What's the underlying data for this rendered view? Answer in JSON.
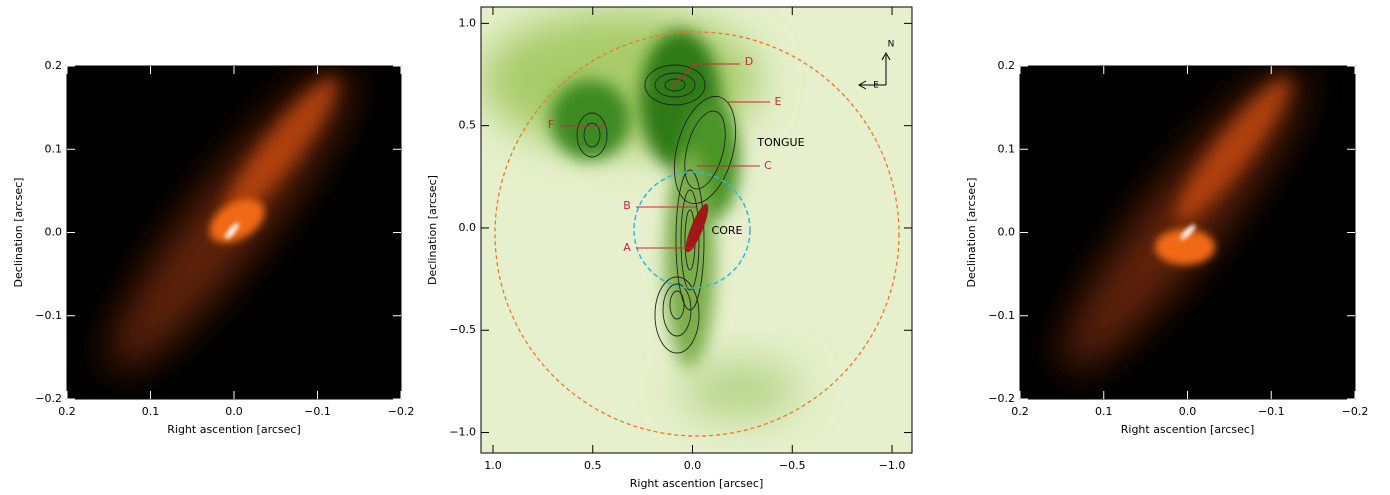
{
  "chart_data": [
    {
      "type": "image",
      "xlabel": "Right ascention [arcsec]",
      "ylabel": "Declination [arcsec]",
      "xlim": [
        0.2,
        -0.2
      ],
      "ylim": [
        -0.2,
        0.2
      ],
      "xticks": [
        0.2,
        0.1,
        {
          "value": 0,
          "label": "0.0"
        },
        {
          "value": -0.1,
          "label": "−0.1"
        },
        {
          "value": -0.2,
          "label": "−0.2"
        }
      ],
      "yticks": [
        {
          "value": -0.2,
          "label": "−0.2"
        },
        {
          "value": -0.1,
          "label": "−0.1"
        },
        {
          "value": 0,
          "label": "0.0"
        },
        0.1,
        0.2
      ]
    },
    {
      "type": "map",
      "xlabel": "Right ascention [arcsec]",
      "ylabel": "Declination [arcsec]",
      "xlim": [
        1.06,
        -1.1
      ],
      "ylim": [
        -1.1,
        1.08
      ],
      "xticks": [
        {
          "value": 1,
          "label": "1.0"
        },
        0.5,
        {
          "value": 0,
          "label": "0.0"
        },
        {
          "value": -0.5,
          "label": "−0.5"
        },
        {
          "value": -1,
          "label": "−1.0"
        }
      ],
      "yticks": [
        {
          "value": -1,
          "label": "−1.0"
        },
        {
          "value": -0.5,
          "label": "−0.5"
        },
        {
          "value": 0,
          "label": "0.0"
        },
        0.5,
        {
          "value": 1,
          "label": "1.0"
        }
      ],
      "annotations": [
        "D",
        "E",
        "F",
        "TONGUE",
        "C",
        "B",
        "CORE",
        "A"
      ],
      "compass": [
        "N",
        "E"
      ]
    },
    {
      "type": "image",
      "xlabel": "Right ascention [arcsec]",
      "ylabel": "Declination [arcsec]",
      "xlim": [
        0.2,
        -0.2
      ],
      "ylim": [
        -0.2,
        0.2
      ],
      "xticks": [
        0.2,
        0.1,
        {
          "value": 0,
          "label": "0.0"
        },
        {
          "value": -0.1,
          "label": "−0.1"
        },
        {
          "value": -0.2,
          "label": "−0.2"
        }
      ],
      "yticks": [
        {
          "value": -0.2,
          "label": "−0.2"
        },
        {
          "value": -0.1,
          "label": "−0.1"
        },
        {
          "value": 0,
          "label": "0.0"
        },
        0.1,
        0.2
      ]
    }
  ]
}
